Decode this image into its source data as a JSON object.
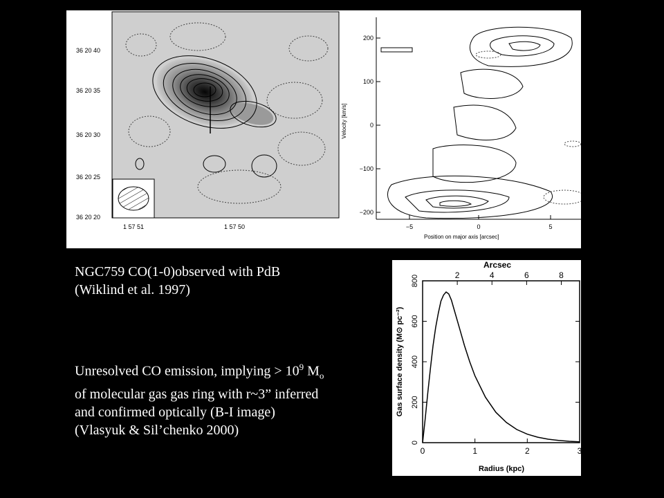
{
  "caption_observation": {
    "line1": "NGC759 CO(1-0)observed with PdB",
    "line2": "(Wiklind et al. 1997)"
  },
  "caption_summary": {
    "line1_a": "Unresolved CO emission, implying > 10",
    "line1_sup": "9",
    "line1_b": " M",
    "line1_sub": "o",
    "line2": "of molecular gas gas ring with r~3” inferred",
    "line3": "and confirmed optically (B-I image)",
    "line4": "(Vlasyuk & Sil’chenko 2000)"
  },
  "map_panel": {
    "y_ticks": [
      "36 20 40",
      "36 20 35",
      "36 20 30",
      "36 20 25",
      "36 20 20"
    ],
    "x_ticks": [
      "1 57 51",
      "1 57 50"
    ]
  },
  "pv_panel": {
    "ylabel": "Velocity [km/s]",
    "xlabel": "Position on major axis [arcsec]",
    "y_ticks": [
      "200",
      "100",
      "0",
      "−100",
      "−200"
    ],
    "x_ticks": [
      "−5",
      "0",
      "5"
    ]
  },
  "chart_data": {
    "type": "line",
    "title": "",
    "xlabel": "Radius (kpc)",
    "ylabel": "Gas surface density (M⊙ pc⁻²)",
    "top_axis_label": "Arcsec",
    "xlim": [
      0,
      3
    ],
    "ylim": [
      0,
      800
    ],
    "x_ticks": [
      0,
      1,
      2,
      3
    ],
    "y_ticks": [
      0,
      200,
      400,
      600,
      800
    ],
    "top_ticks": [
      2,
      4,
      6,
      8
    ],
    "series": [
      {
        "x": [
          0.0,
          0.05,
          0.1,
          0.15,
          0.2,
          0.25,
          0.3,
          0.35,
          0.4,
          0.45,
          0.5,
          0.55,
          0.6,
          0.7,
          0.8,
          0.9,
          1.0,
          1.2,
          1.4,
          1.6,
          1.8,
          2.0,
          2.2,
          2.4,
          2.6,
          2.8,
          3.0
        ],
        "values": [
          0,
          120,
          250,
          370,
          480,
          570,
          640,
          700,
          730,
          745,
          735,
          705,
          660,
          570,
          480,
          400,
          330,
          225,
          150,
          100,
          65,
          42,
          27,
          17,
          11,
          7,
          4
        ]
      }
    ]
  }
}
